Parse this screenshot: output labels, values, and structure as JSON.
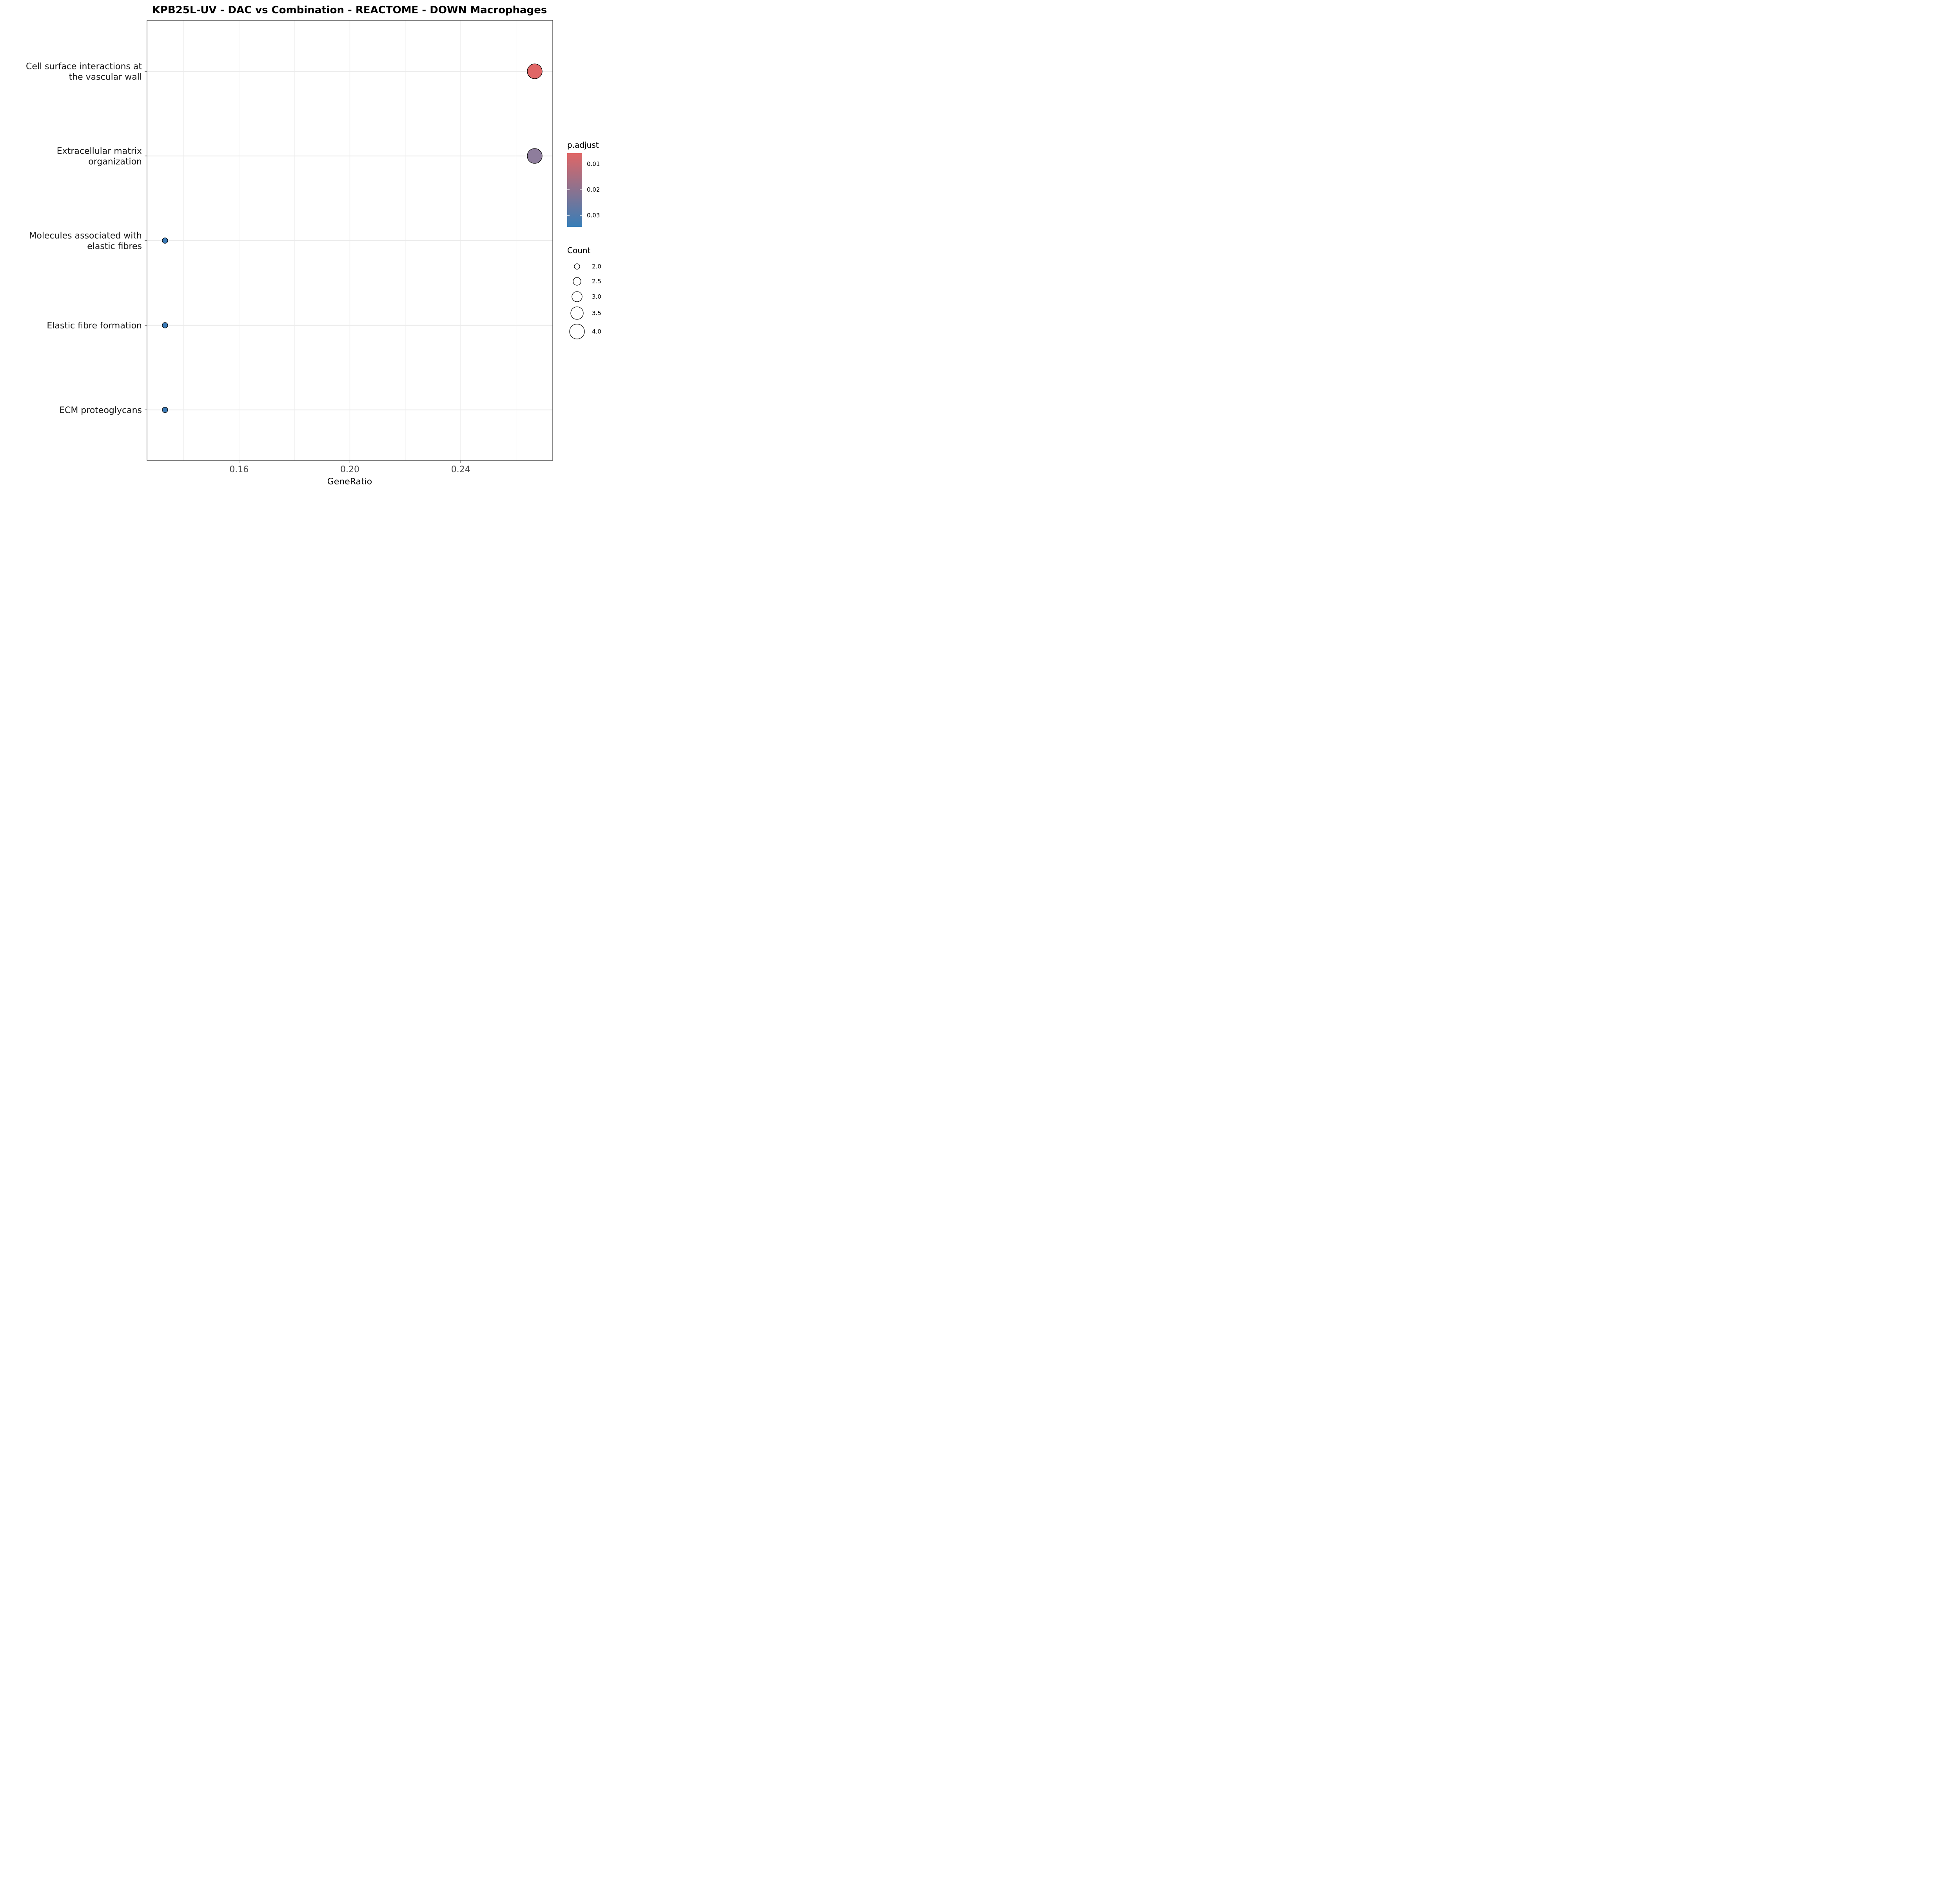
{
  "chart_data": {
    "type": "scatter",
    "title": "KPB25L-UV - DAC vs Combination - REACTOME - DOWN Macrophages",
    "xlabel": "GeneRatio",
    "ylabel": "",
    "xlim": [
      0.1268,
      0.2732
    ],
    "x_ticks": [
      "0.16",
      "0.20",
      "0.24"
    ],
    "x_tick_values": [
      0.16,
      0.2,
      0.24
    ],
    "categories": [
      [
        "Cell surface interactions at",
        "the vascular wall"
      ],
      [
        "Extracellular matrix",
        "organization"
      ],
      [
        "Molecules associated with",
        "elastic fibres"
      ],
      [
        "Elastic fibre formation"
      ],
      [
        "ECM proteoglycans"
      ]
    ],
    "points": [
      {
        "term": "Cell surface interactions at the vascular wall",
        "x": 0.2667,
        "count": 4,
        "p_adjust": 0.0075,
        "color": "#E06666"
      },
      {
        "term": "Extracellular matrix organization",
        "x": 0.2667,
        "count": 4,
        "p_adjust": 0.0225,
        "color": "#8E7D9C"
      },
      {
        "term": "Molecules associated with elastic fibres",
        "x": 0.1333,
        "count": 2,
        "p_adjust": 0.034,
        "color": "#3A7AB7"
      },
      {
        "term": "Elastic fibre formation",
        "x": 0.1333,
        "count": 2,
        "p_adjust": 0.034,
        "color": "#3A7AB7"
      },
      {
        "term": "ECM proteoglycans",
        "x": 0.1333,
        "count": 2,
        "p_adjust": 0.034,
        "color": "#3A7AB7"
      }
    ],
    "color_legend": {
      "title": "p.adjust",
      "ticks": [
        "0.01",
        "0.02",
        "0.03"
      ],
      "tick_values": [
        0.01,
        0.02,
        0.03
      ],
      "range": [
        0.0058,
        0.0345
      ],
      "low_color": "#E06666",
      "high_color": "#377EB8"
    },
    "size_legend": {
      "title": "Count",
      "labels": [
        "2.0",
        "2.5",
        "3.0",
        "3.5",
        "4.0"
      ],
      "values": [
        2.0,
        2.5,
        3.0,
        3.5,
        4.0
      ]
    },
    "grid": true,
    "legend_position": "right"
  }
}
